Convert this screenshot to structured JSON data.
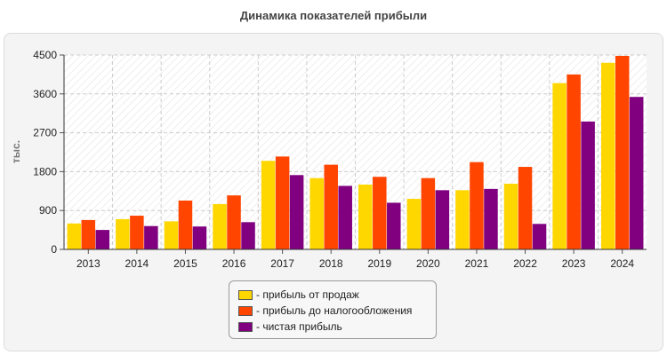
{
  "chart_data": {
    "type": "bar",
    "title": "Динамика показателей прибыли",
    "ylabel": "тыс.",
    "xlabel": "",
    "ylim": [
      0,
      4500
    ],
    "yticks": [
      0,
      900,
      1800,
      2700,
      3600,
      4500
    ],
    "categories": [
      "2013",
      "2014",
      "2015",
      "2016",
      "2017",
      "2018",
      "2019",
      "2020",
      "2021",
      "2022",
      "2023",
      "2024"
    ],
    "series": [
      {
        "name": "- прибыль от продаж",
        "color": "#FFD700",
        "values": [
          600,
          700,
          650,
          1050,
          2050,
          1650,
          1500,
          1170,
          1370,
          1520,
          3850,
          4320
        ]
      },
      {
        "name": "- прибыль до налогообложения",
        "color": "#FF4500",
        "values": [
          680,
          780,
          1130,
          1250,
          2150,
          1960,
          1680,
          1650,
          2020,
          1910,
          4050,
          4480
        ]
      },
      {
        "name": "- чистая прибыль",
        "color": "#800080",
        "values": [
          450,
          540,
          530,
          630,
          1720,
          1470,
          1080,
          1370,
          1400,
          590,
          2960,
          3530
        ]
      }
    ]
  }
}
